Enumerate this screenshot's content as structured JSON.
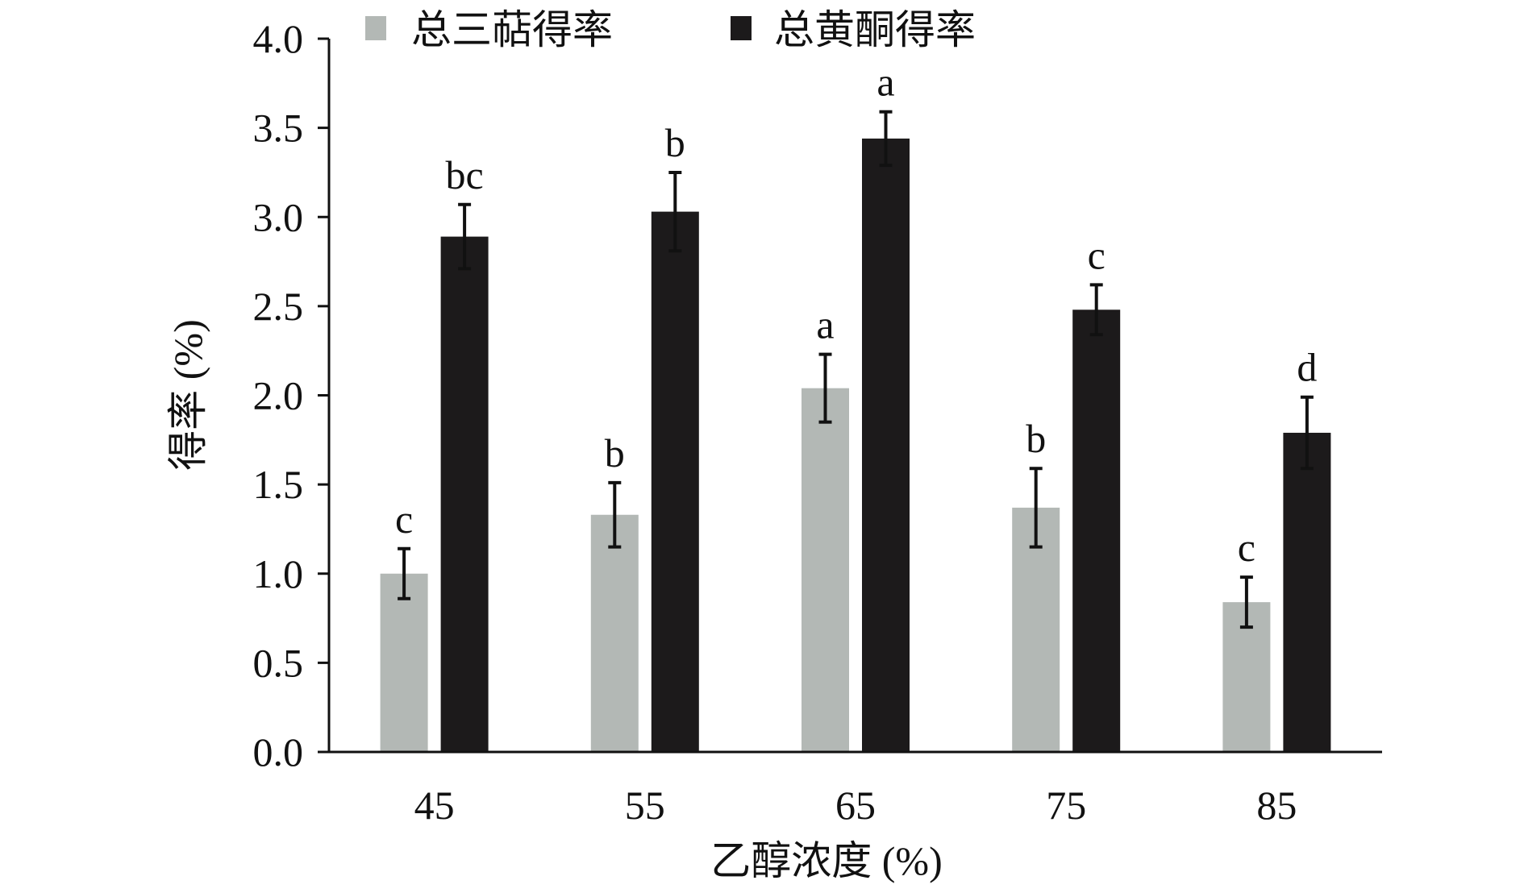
{
  "chart_data": {
    "type": "bar",
    "xlabel": "乙醇浓度 (%)",
    "ylabel": "得率 (%)",
    "categories": [
      "45",
      "55",
      "65",
      "75",
      "85"
    ],
    "ylim": [
      0,
      4.0
    ],
    "yticks": [
      "0.0",
      "0.5",
      "1.0",
      "1.5",
      "2.0",
      "2.5",
      "3.0",
      "3.5",
      "4.0"
    ],
    "legend_position": "top",
    "grid": false,
    "series": [
      {
        "name": "总三萜得率",
        "color": "#b3b8b5",
        "values": [
          1.0,
          1.33,
          2.04,
          1.37,
          0.84
        ],
        "errors": [
          0.14,
          0.18,
          0.19,
          0.22,
          0.14
        ],
        "labels": [
          "c",
          "b",
          "a",
          "b",
          "c"
        ]
      },
      {
        "name": "总黄酮得率",
        "color": "#1c1a1b",
        "values": [
          2.89,
          3.03,
          3.44,
          2.48,
          1.79
        ],
        "errors": [
          0.18,
          0.22,
          0.15,
          0.14,
          0.2
        ],
        "labels": [
          "bc",
          "b",
          "a",
          "c",
          "d"
        ]
      }
    ]
  }
}
